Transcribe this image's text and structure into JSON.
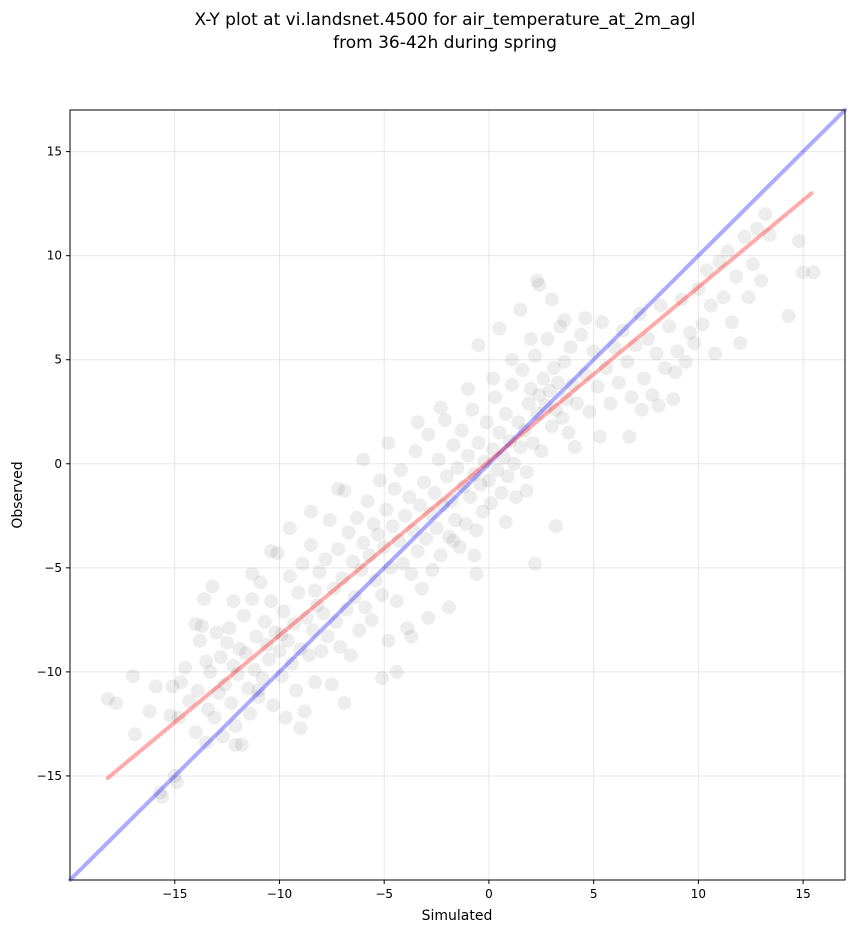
{
  "chart_data": {
    "type": "scatter",
    "title": [
      "X-Y plot at vi.landsnet.4500 for air_temperature_at_2m_agl",
      "from 36-42h during spring"
    ],
    "xlabel": "Simulated",
    "ylabel": "Observed",
    "xlim": [
      -20,
      17
    ],
    "ylim": [
      -20,
      17
    ],
    "x_ticks": [
      -15,
      -10,
      -5,
      0,
      5,
      10,
      15
    ],
    "y_ticks": [
      -15,
      -10,
      -5,
      0,
      5,
      10,
      15
    ],
    "x_tick_labels": [
      "−15",
      "−10",
      "−5",
      "0",
      "5",
      "10",
      "15"
    ],
    "y_tick_labels": [
      "−15",
      "−10",
      "−5",
      "0",
      "5",
      "10",
      "15"
    ],
    "grid": true,
    "marker_color": "#000000",
    "lines": [
      {
        "kind": "identity",
        "color": "#0000ff",
        "x": [
          -20,
          17
        ],
        "y": [
          -20,
          17
        ]
      },
      {
        "kind": "fit",
        "color": "#ff0000",
        "x": [
          -18.2,
          15.4
        ],
        "y": [
          -15.1,
          13.0
        ]
      }
    ],
    "points": [
      [
        -18.2,
        -11.3
      ],
      [
        -17.8,
        -11.5
      ],
      [
        -17.0,
        -10.2
      ],
      [
        -16.9,
        -13.0
      ],
      [
        -16.2,
        -11.9
      ],
      [
        -15.9,
        -10.7
      ],
      [
        -15.7,
        -15.8
      ],
      [
        -15.6,
        -16.0
      ],
      [
        -15.2,
        -12.1
      ],
      [
        -15.1,
        -10.7
      ],
      [
        -15.0,
        -15.0
      ],
      [
        -14.9,
        -15.3
      ],
      [
        -14.8,
        -12.2
      ],
      [
        -14.7,
        -10.5
      ],
      [
        -14.5,
        -9.8
      ],
      [
        -14.3,
        -11.4
      ],
      [
        -14.0,
        -12.9
      ],
      [
        -13.9,
        -10.9
      ],
      [
        -13.8,
        -8.5
      ],
      [
        -13.7,
        -7.8
      ],
      [
        -13.6,
        -6.5
      ],
      [
        -13.5,
        -9.5
      ],
      [
        -13.4,
        -11.8
      ],
      [
        -13.3,
        -10.0
      ],
      [
        -13.2,
        -5.9
      ],
      [
        -13.1,
        -12.2
      ],
      [
        -13.0,
        -8.1
      ],
      [
        -12.9,
        -11.0
      ],
      [
        -12.8,
        -9.3
      ],
      [
        -12.7,
        -13.1
      ],
      [
        -12.6,
        -10.6
      ],
      [
        -12.5,
        -8.6
      ],
      [
        -12.4,
        -7.9
      ],
      [
        -12.3,
        -11.5
      ],
      [
        -12.2,
        -9.7
      ],
      [
        -12.1,
        -12.6
      ],
      [
        -12.0,
        -10.1
      ],
      [
        -11.9,
        -8.9
      ],
      [
        -11.8,
        -13.5
      ],
      [
        -11.7,
        -7.3
      ],
      [
        -11.6,
        -9.1
      ],
      [
        -11.5,
        -10.8
      ],
      [
        -11.4,
        -12.0
      ],
      [
        -11.3,
        -6.5
      ],
      [
        -11.2,
        -9.9
      ],
      [
        -11.1,
        -8.3
      ],
      [
        -11.0,
        -11.2
      ],
      [
        -10.9,
        -5.7
      ],
      [
        -10.8,
        -10.3
      ],
      [
        -10.7,
        -7.6
      ],
      [
        -10.6,
        -8.7
      ],
      [
        -10.5,
        -9.4
      ],
      [
        -10.4,
        -6.6
      ],
      [
        -10.3,
        -11.6
      ],
      [
        -10.2,
        -8.1
      ],
      [
        -10.1,
        -4.3
      ],
      [
        -10.0,
        -9.0
      ],
      [
        -9.9,
        -10.2
      ],
      [
        -9.8,
        -7.1
      ],
      [
        -9.7,
        -12.2
      ],
      [
        -9.6,
        -8.5
      ],
      [
        -9.5,
        -5.4
      ],
      [
        -9.4,
        -9.6
      ],
      [
        -9.3,
        -7.7
      ],
      [
        -9.2,
        -10.9
      ],
      [
        -9.1,
        -6.2
      ],
      [
        -9.0,
        -8.9
      ],
      [
        -8.9,
        -4.8
      ],
      [
        -8.8,
        -11.9
      ],
      [
        -8.7,
        -7.4
      ],
      [
        -8.6,
        -9.2
      ],
      [
        -8.5,
        -3.9
      ],
      [
        -8.4,
        -8.0
      ],
      [
        -8.3,
        -10.5
      ],
      [
        -8.2,
        -6.8
      ],
      [
        -8.1,
        -5.2
      ],
      [
        -8.0,
        -9.0
      ],
      [
        -7.9,
        -7.2
      ],
      [
        -7.8,
        -4.6
      ],
      [
        -7.7,
        -8.3
      ],
      [
        -7.6,
        -2.7
      ],
      [
        -7.5,
        -10.6
      ],
      [
        -7.4,
        -6.0
      ],
      [
        -7.3,
        -7.6
      ],
      [
        -7.2,
        -4.1
      ],
      [
        -7.1,
        -8.8
      ],
      [
        -7.0,
        -5.5
      ],
      [
        -6.9,
        -1.3
      ],
      [
        -6.8,
        -7.0
      ],
      [
        -6.7,
        -3.3
      ],
      [
        -6.6,
        -9.2
      ],
      [
        -6.5,
        -4.7
      ],
      [
        -6.4,
        -6.4
      ],
      [
        -6.3,
        -2.6
      ],
      [
        -6.2,
        -8.0
      ],
      [
        -6.1,
        -5.1
      ],
      [
        -6.0,
        -3.8
      ],
      [
        -5.9,
        -6.9
      ],
      [
        -5.8,
        -1.8
      ],
      [
        -5.7,
        -4.4
      ],
      [
        -5.6,
        -7.5
      ],
      [
        -5.5,
        -2.9
      ],
      [
        -5.4,
        -5.6
      ],
      [
        -5.3,
        -3.4
      ],
      [
        -5.2,
        -0.8
      ],
      [
        -5.1,
        -6.3
      ],
      [
        -5.0,
        -4.0
      ],
      [
        -4.9,
        -2.2
      ],
      [
        -4.8,
        -8.5
      ],
      [
        -4.7,
        -5.0
      ],
      [
        -4.6,
        -3.0
      ],
      [
        -4.5,
        -1.2
      ],
      [
        -4.4,
        -6.6
      ],
      [
        -4.3,
        -3.7
      ],
      [
        -4.2,
        -0.3
      ],
      [
        -4.1,
        -4.8
      ],
      [
        -4.0,
        -2.5
      ],
      [
        -3.9,
        -7.9
      ],
      [
        -3.8,
        -1.6
      ],
      [
        -3.7,
        -5.3
      ],
      [
        -3.6,
        -3.2
      ],
      [
        -3.5,
        0.6
      ],
      [
        -3.4,
        -4.2
      ],
      [
        -3.3,
        -2.0
      ],
      [
        -3.2,
        -6.0
      ],
      [
        -3.1,
        -0.9
      ],
      [
        -3.0,
        -3.6
      ],
      [
        -2.9,
        1.4
      ],
      [
        -2.8,
        -2.4
      ],
      [
        -2.7,
        -5.1
      ],
      [
        -2.6,
        -1.4
      ],
      [
        -2.5,
        -3.1
      ],
      [
        -2.4,
        0.2
      ],
      [
        -2.3,
        -4.4
      ],
      [
        -2.2,
        -2.0
      ],
      [
        -2.1,
        2.1
      ],
      [
        -2.0,
        -0.6
      ],
      [
        -1.9,
        -3.5
      ],
      [
        -1.8,
        -1.8
      ],
      [
        -1.7,
        0.9
      ],
      [
        -1.6,
        -2.7
      ],
      [
        -1.5,
        -0.2
      ],
      [
        -1.4,
        -4.0
      ],
      [
        -1.3,
        1.6
      ],
      [
        -1.2,
        -1.1
      ],
      [
        -1.1,
        -2.9
      ],
      [
        -1.0,
        0.4
      ],
      [
        -0.9,
        -1.6
      ],
      [
        -0.8,
        2.6
      ],
      [
        -0.7,
        -0.5
      ],
      [
        -0.6,
        -3.2
      ],
      [
        -0.5,
        1.0
      ],
      [
        -0.4,
        -1.0
      ],
      [
        -0.3,
        -2.3
      ],
      [
        -0.2,
        0.1
      ],
      [
        -0.1,
        2.0
      ],
      [
        0.0,
        -0.8
      ],
      [
        0.1,
        -1.9
      ],
      [
        0.2,
        0.7
      ],
      [
        0.3,
        3.2
      ],
      [
        0.4,
        -0.3
      ],
      [
        0.5,
        1.5
      ],
      [
        0.6,
        -1.4
      ],
      [
        0.7,
        0.3
      ],
      [
        0.8,
        2.4
      ],
      [
        0.9,
        -0.6
      ],
      [
        1.0,
        1.1
      ],
      [
        1.1,
        3.8
      ],
      [
        1.2,
        0.0
      ],
      [
        1.3,
        -1.6
      ],
      [
        1.4,
        2.0
      ],
      [
        1.5,
        0.8
      ],
      [
        1.6,
        4.5
      ],
      [
        1.7,
        1.6
      ],
      [
        1.8,
        -0.4
      ],
      [
        1.9,
        2.9
      ],
      [
        2.0,
        3.6
      ],
      [
        2.1,
        1.0
      ],
      [
        2.2,
        5.2
      ],
      [
        2.3,
        2.4
      ],
      [
        2.4,
        3.3
      ],
      [
        2.5,
        0.6
      ],
      [
        2.6,
        4.1
      ],
      [
        2.7,
        2.8
      ],
      [
        2.8,
        6.0
      ],
      [
        2.9,
        3.5
      ],
      [
        3.0,
        1.8
      ],
      [
        3.1,
        4.6
      ],
      [
        3.2,
        2.6
      ],
      [
        3.3,
        3.9
      ],
      [
        3.4,
        6.6
      ],
      [
        3.5,
        2.2
      ],
      [
        3.6,
        4.9
      ],
      [
        3.7,
        3.1
      ],
      [
        3.8,
        1.5
      ],
      [
        3.9,
        5.6
      ],
      [
        4.0,
        3.8
      ],
      [
        4.2,
        2.9
      ],
      [
        4.4,
        6.2
      ],
      [
        4.6,
        4.3
      ],
      [
        4.8,
        2.5
      ],
      [
        5.0,
        5.4
      ],
      [
        5.2,
        3.7
      ],
      [
        5.4,
        6.8
      ],
      [
        5.6,
        4.6
      ],
      [
        5.8,
        2.9
      ],
      [
        6.0,
        5.6
      ],
      [
        6.2,
        3.9
      ],
      [
        6.4,
        6.4
      ],
      [
        6.6,
        4.9
      ],
      [
        6.8,
        3.2
      ],
      [
        7.0,
        5.7
      ],
      [
        7.2,
        7.2
      ],
      [
        7.4,
        4.1
      ],
      [
        7.6,
        6.0
      ],
      [
        7.8,
        3.3
      ],
      [
        8.0,
        5.3
      ],
      [
        8.2,
        7.6
      ],
      [
        8.4,
        4.6
      ],
      [
        8.6,
        6.6
      ],
      [
        8.8,
        3.1
      ],
      [
        9.0,
        5.4
      ],
      [
        9.2,
        7.9
      ],
      [
        9.4,
        4.9
      ],
      [
        9.6,
        6.3
      ],
      [
        9.8,
        5.8
      ],
      [
        10.0,
        8.4
      ],
      [
        10.2,
        6.7
      ],
      [
        10.4,
        9.3
      ],
      [
        10.6,
        7.6
      ],
      [
        10.8,
        5.3
      ],
      [
        11.0,
        9.7
      ],
      [
        11.2,
        8.0
      ],
      [
        11.4,
        10.2
      ],
      [
        11.6,
        6.8
      ],
      [
        11.8,
        9.0
      ],
      [
        12.0,
        5.8
      ],
      [
        12.2,
        10.9
      ],
      [
        12.4,
        8.0
      ],
      [
        12.6,
        9.6
      ],
      [
        12.8,
        11.3
      ],
      [
        13.0,
        8.8
      ],
      [
        13.2,
        12.0
      ],
      [
        13.4,
        11.0
      ],
      [
        14.3,
        7.1
      ],
      [
        14.8,
        10.7
      ],
      [
        15.0,
        9.2
      ],
      [
        15.5,
        9.2
      ],
      [
        2.3,
        8.8
      ],
      [
        2.4,
        8.6
      ],
      [
        1.5,
        7.4
      ],
      [
        3.0,
        7.9
      ],
      [
        -0.5,
        5.7
      ],
      [
        0.5,
        6.5
      ],
      [
        3.2,
        -3.0
      ],
      [
        2.2,
        -4.8
      ],
      [
        -0.7,
        -4.4
      ],
      [
        -1.7,
        -3.7
      ],
      [
        -4.4,
        -10.0
      ],
      [
        -5.1,
        -10.3
      ],
      [
        -6.9,
        -11.5
      ],
      [
        -9.0,
        -12.7
      ],
      [
        -11.0,
        -10.9
      ],
      [
        -12.1,
        -13.5
      ],
      [
        -13.5,
        -13.4
      ],
      [
        -14.0,
        -7.7
      ],
      [
        -9.9,
        -8.2
      ],
      [
        -8.3,
        -6.1
      ],
      [
        -3.7,
        -8.3
      ],
      [
        -2.9,
        -7.4
      ],
      [
        -1.9,
        -6.9
      ],
      [
        -0.6,
        -5.3
      ],
      [
        0.8,
        -2.8
      ],
      [
        1.8,
        -1.3
      ],
      [
        4.1,
        0.8
      ],
      [
        5.3,
        1.3
      ],
      [
        6.7,
        1.3
      ],
      [
        7.3,
        2.6
      ],
      [
        8.1,
        2.8
      ],
      [
        8.9,
        4.4
      ],
      [
        -1.0,
        3.6
      ],
      [
        -2.3,
        2.7
      ],
      [
        -3.4,
        2.0
      ],
      [
        -4.8,
        1.0
      ],
      [
        -6.0,
        0.2
      ],
      [
        -7.2,
        -1.2
      ],
      [
        -8.5,
        -2.3
      ],
      [
        -9.5,
        -3.1
      ],
      [
        -10.4,
        -4.2
      ],
      [
        -11.3,
        -5.3
      ],
      [
        -12.2,
        -6.6
      ],
      [
        0.2,
        4.1
      ],
      [
        1.1,
        5.0
      ],
      [
        2.0,
        6.0
      ],
      [
        3.6,
        6.9
      ],
      [
        4.6,
        7.0
      ]
    ]
  }
}
